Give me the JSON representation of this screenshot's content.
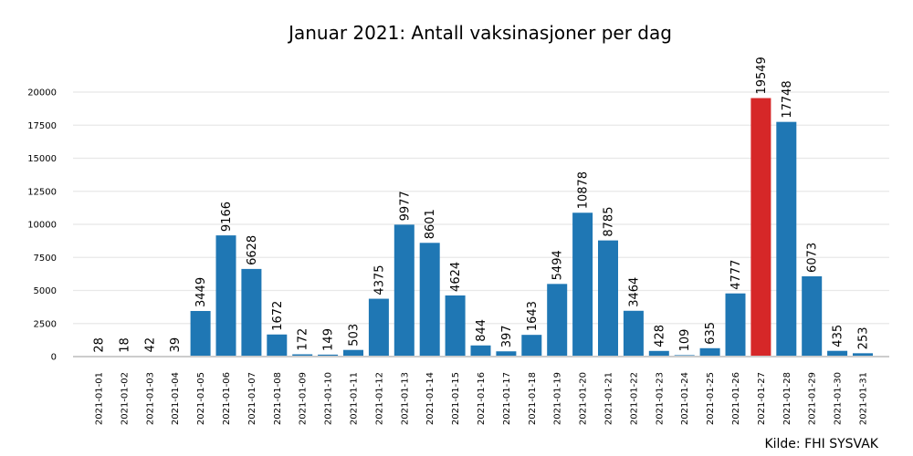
{
  "chart_data": {
    "type": "bar",
    "title": "Januar 2021: Antall vaksinasjoner per dag",
    "source": "Kilde: FHI SYSVAK",
    "xlabel": "",
    "ylabel": "",
    "ylim": [
      0,
      22000
    ],
    "yticks": [
      0,
      2500,
      5000,
      7500,
      10000,
      12500,
      15000,
      17500,
      20000
    ],
    "grid": "horizontal",
    "legend": "none",
    "bar_color": "#1f77b4",
    "highlight_color": "#d62728",
    "highlight_category": "2021-01-27",
    "categories": [
      "2021-01-01",
      "2021-01-02",
      "2021-01-03",
      "2021-01-04",
      "2021-01-05",
      "2021-01-06",
      "2021-01-07",
      "2021-01-08",
      "2021-01-09",
      "2021-01-10",
      "2021-01-11",
      "2021-01-12",
      "2021-01-13",
      "2021-01-14",
      "2021-01-15",
      "2021-01-16",
      "2021-01-17",
      "2021-01-18",
      "2021-01-19",
      "2021-01-20",
      "2021-01-21",
      "2021-01-22",
      "2021-01-23",
      "2021-01-24",
      "2021-01-25",
      "2021-01-26",
      "2021-01-27",
      "2021-01-28",
      "2021-01-29",
      "2021-01-30",
      "2021-01-31"
    ],
    "values": [
      28,
      18,
      42,
      39,
      3449,
      9166,
      6628,
      1672,
      172,
      149,
      503,
      4375,
      9977,
      8601,
      4624,
      844,
      397,
      1643,
      5494,
      10878,
      8785,
      3464,
      428,
      109,
      635,
      4777,
      19549,
      17748,
      6073,
      435,
      253
    ]
  }
}
